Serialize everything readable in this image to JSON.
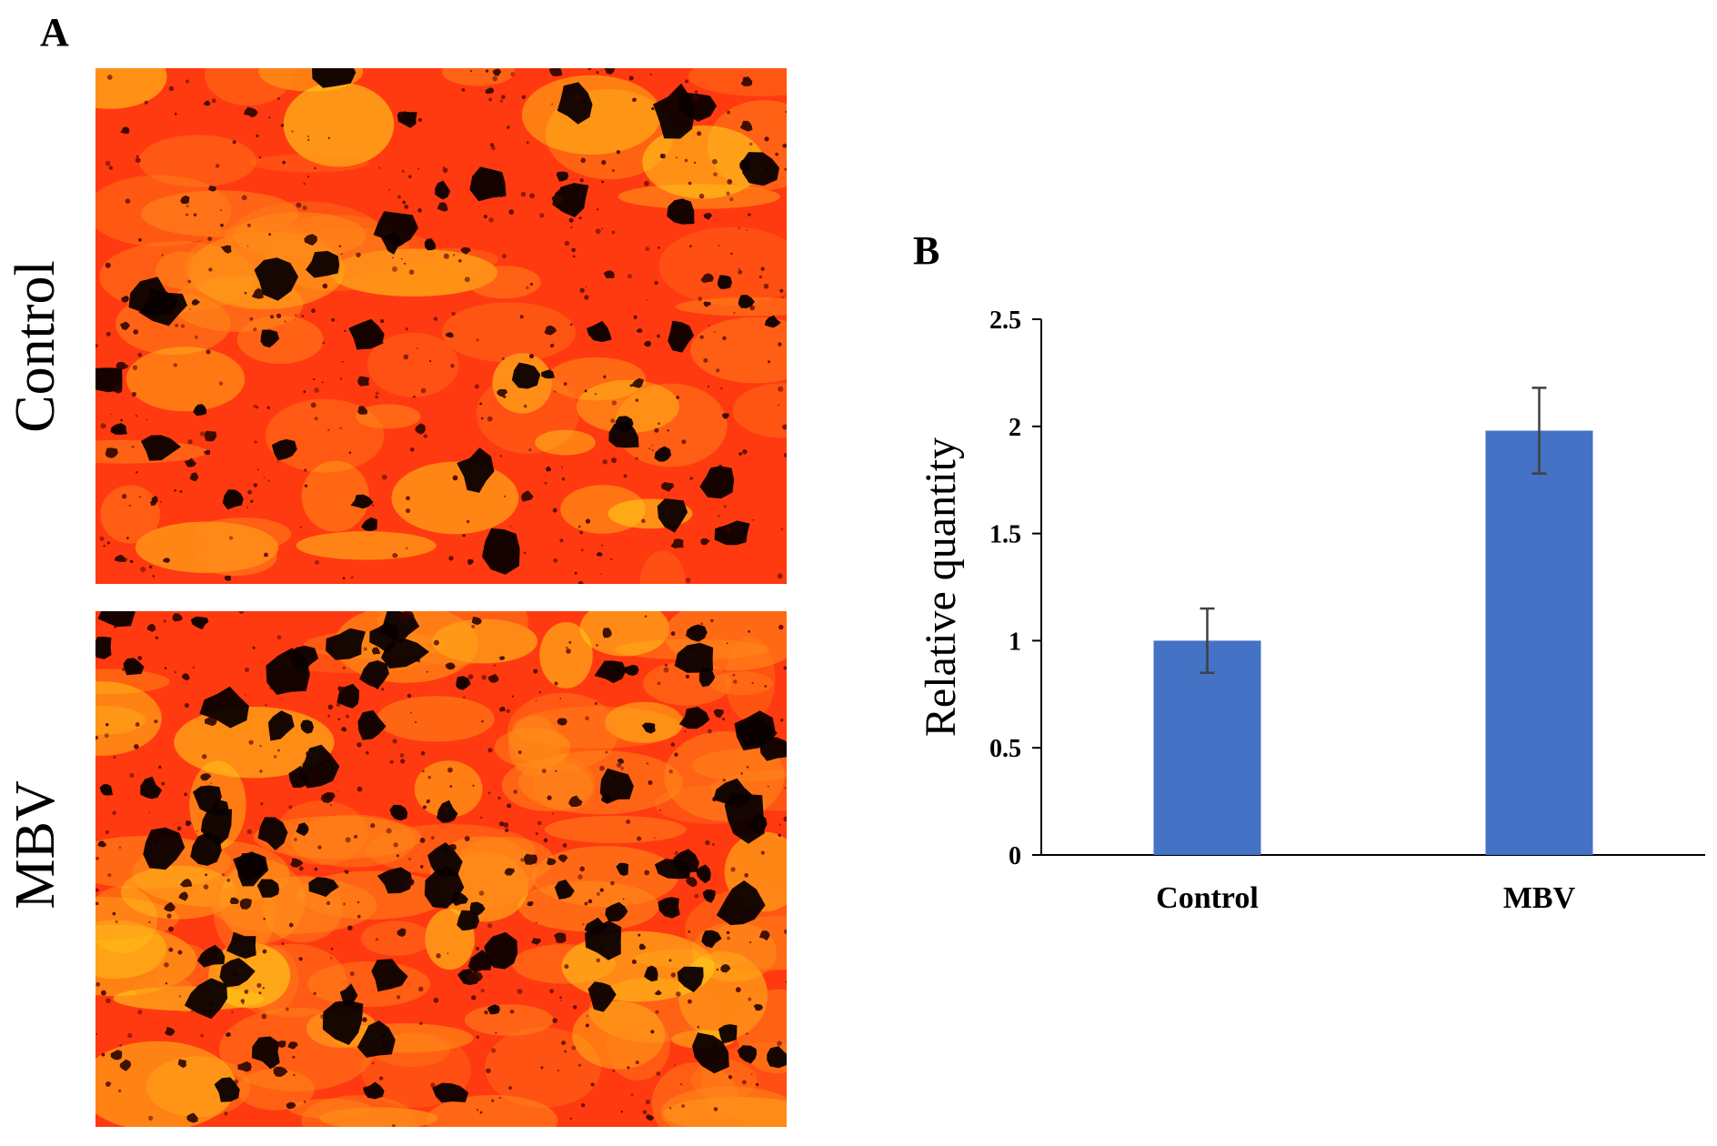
{
  "panels": {
    "a_letter": "A",
    "b_letter": "B",
    "row_labels": [
      "Control",
      "MBV"
    ]
  },
  "images": {
    "base_color": "#ff3a10",
    "highlight_color": "#ffd21a",
    "particle_color": "#0a0000"
  },
  "chart_data": {
    "type": "bar",
    "categories": [
      "Control",
      "MBV"
    ],
    "values": [
      1.0,
      1.98
    ],
    "errors": [
      0.15,
      0.2
    ],
    "ylabel": "Relative quantity",
    "ylim": [
      0,
      2.5
    ],
    "yticks": [
      "0",
      "0.5",
      "1",
      "1.5",
      "2",
      "2.5"
    ],
    "bar_color": "#4472c4",
    "grid": false
  }
}
